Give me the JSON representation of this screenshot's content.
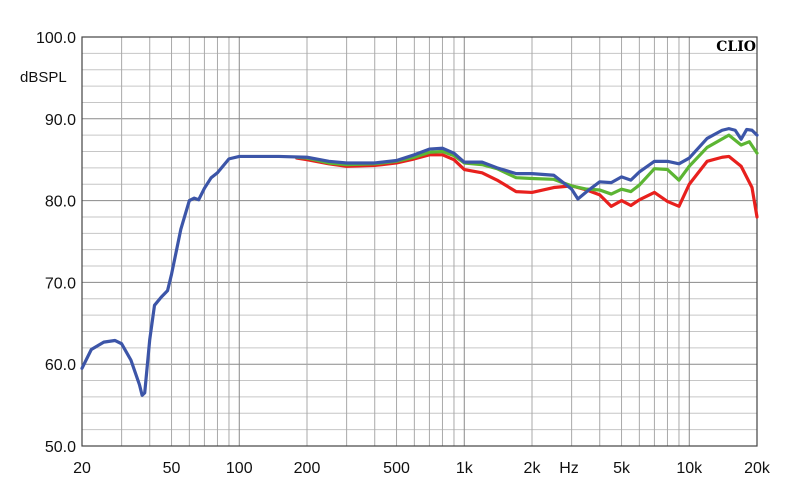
{
  "chart_data": {
    "type": "line",
    "brand": "CLIO",
    "ylabel": "dBSPL",
    "xlabel": "Hz",
    "x_scale": "log",
    "xlim": [
      20,
      20000
    ],
    "ylim": [
      50,
      100
    ],
    "grid": true,
    "y_ticks": [
      {
        "value": 100,
        "label": "100.0"
      },
      {
        "value": 90,
        "label": "90.0"
      },
      {
        "value": 80,
        "label": "80.0"
      },
      {
        "value": 70,
        "label": "70.0"
      },
      {
        "value": 60,
        "label": "60.0"
      },
      {
        "value": 50,
        "label": "50.0"
      }
    ],
    "x_ticks": [
      {
        "value": 20,
        "label": "20"
      },
      {
        "value": 50,
        "label": "50"
      },
      {
        "value": 100,
        "label": "100"
      },
      {
        "value": 200,
        "label": "200"
      },
      {
        "value": 500,
        "label": "500"
      },
      {
        "value": 1000,
        "label": "1k"
      },
      {
        "value": 2000,
        "label": "2k"
      },
      {
        "value": 5000,
        "label": "5k"
      },
      {
        "value": 10000,
        "label": "10k"
      },
      {
        "value": 20000,
        "label": "20k"
      }
    ],
    "series": [
      {
        "color": "#e8201d",
        "points": [
          [
            180,
            85.2
          ],
          [
            200,
            85
          ],
          [
            250,
            84.5
          ],
          [
            300,
            84.2
          ],
          [
            400,
            84.3
          ],
          [
            500,
            84.6
          ],
          [
            600,
            85.1
          ],
          [
            700,
            85.6
          ],
          [
            800,
            85.6
          ],
          [
            900,
            85
          ],
          [
            1000,
            83.8
          ],
          [
            1200,
            83.4
          ],
          [
            1400,
            82.5
          ],
          [
            1700,
            81.1
          ],
          [
            2000,
            81
          ],
          [
            2500,
            81.6
          ],
          [
            3000,
            81.8
          ],
          [
            3500,
            81.3
          ],
          [
            4000,
            80.7
          ],
          [
            4500,
            79.3
          ],
          [
            5000,
            80
          ],
          [
            5500,
            79.4
          ],
          [
            6000,
            80.1
          ],
          [
            7000,
            81
          ],
          [
            8000,
            79.9
          ],
          [
            9000,
            79.3
          ],
          [
            10000,
            82
          ],
          [
            12000,
            84.8
          ],
          [
            14000,
            85.3
          ],
          [
            15000,
            85.4
          ],
          [
            17000,
            84.2
          ],
          [
            19000,
            81.6
          ],
          [
            20000,
            78
          ]
        ]
      },
      {
        "color": "#5cb533",
        "points": [
          [
            180,
            85.3
          ],
          [
            200,
            85.2
          ],
          [
            250,
            84.6
          ],
          [
            300,
            84.4
          ],
          [
            400,
            84.5
          ],
          [
            500,
            84.8
          ],
          [
            600,
            85.3
          ],
          [
            700,
            85.9
          ],
          [
            800,
            86
          ],
          [
            900,
            85.5
          ],
          [
            1000,
            84.6
          ],
          [
            1200,
            84.4
          ],
          [
            1400,
            83.9
          ],
          [
            1700,
            82.8
          ],
          [
            2000,
            82.7
          ],
          [
            2500,
            82.6
          ],
          [
            3000,
            81.8
          ],
          [
            3500,
            81.4
          ],
          [
            4000,
            81.3
          ],
          [
            4500,
            80.8
          ],
          [
            5000,
            81.4
          ],
          [
            5500,
            81.1
          ],
          [
            6000,
            81.9
          ],
          [
            7000,
            83.9
          ],
          [
            8000,
            83.8
          ],
          [
            9000,
            82.5
          ],
          [
            10000,
            84.2
          ],
          [
            12000,
            86.5
          ],
          [
            15000,
            88
          ],
          [
            17000,
            86.8
          ],
          [
            18500,
            87.2
          ],
          [
            20000,
            85.8
          ]
        ]
      },
      {
        "color": "#3c55a8",
        "points": [
          [
            20,
            59.5
          ],
          [
            22,
            61.8
          ],
          [
            25,
            62.7
          ],
          [
            28,
            62.9
          ],
          [
            30,
            62.5
          ],
          [
            33,
            60.5
          ],
          [
            36,
            57.5
          ],
          [
            37,
            56.2
          ],
          [
            38,
            56.5
          ],
          [
            40,
            63
          ],
          [
            42,
            67.2
          ],
          [
            45,
            68.2
          ],
          [
            48,
            69
          ],
          [
            50,
            71
          ],
          [
            55,
            76.5
          ],
          [
            60,
            80
          ],
          [
            63,
            80.3
          ],
          [
            66,
            80.1
          ],
          [
            70,
            81.5
          ],
          [
            75,
            82.8
          ],
          [
            80,
            83.4
          ],
          [
            90,
            85.1
          ],
          [
            100,
            85.4
          ],
          [
            150,
            85.4
          ],
          [
            200,
            85.3
          ],
          [
            250,
            84.8
          ],
          [
            300,
            84.6
          ],
          [
            400,
            84.6
          ],
          [
            500,
            84.9
          ],
          [
            600,
            85.6
          ],
          [
            700,
            86.3
          ],
          [
            800,
            86.4
          ],
          [
            900,
            85.8
          ],
          [
            1000,
            84.7
          ],
          [
            1200,
            84.7
          ],
          [
            1400,
            84
          ],
          [
            1700,
            83.3
          ],
          [
            2000,
            83.3
          ],
          [
            2500,
            83.1
          ],
          [
            3000,
            81.4
          ],
          [
            3200,
            80.2
          ],
          [
            3500,
            81.1
          ],
          [
            4000,
            82.3
          ],
          [
            4500,
            82.2
          ],
          [
            5000,
            82.9
          ],
          [
            5500,
            82.5
          ],
          [
            6000,
            83.5
          ],
          [
            7000,
            84.8
          ],
          [
            8000,
            84.8
          ],
          [
            9000,
            84.5
          ],
          [
            10000,
            85.2
          ],
          [
            12000,
            87.6
          ],
          [
            14000,
            88.6
          ],
          [
            15000,
            88.8
          ],
          [
            16000,
            88.6
          ],
          [
            17000,
            87.5
          ],
          [
            18000,
            88.7
          ],
          [
            19000,
            88.6
          ],
          [
            20000,
            88
          ]
        ]
      }
    ]
  }
}
